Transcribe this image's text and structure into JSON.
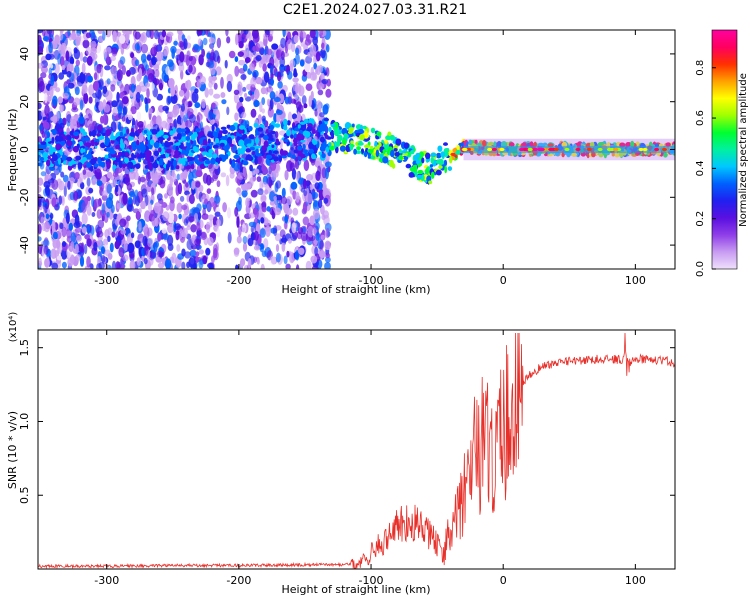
{
  "title": "C2E1.2024.027.03.31.R21",
  "chart_data": [
    {
      "type": "heatmap",
      "title": "C2E1.2024.027.03.31.R21",
      "xlabel": "Height of straight line (km)",
      "ylabel": "Frequency (Hz)",
      "xlim": [
        -352,
        130
      ],
      "ylim": [
        -50,
        50
      ],
      "xticks": [
        -300,
        -200,
        -100,
        0,
        100
      ],
      "yticks": [
        -40,
        -20,
        0,
        20,
        40
      ],
      "colorbar": {
        "label": "Normalized spectral amplitude",
        "range": [
          0,
          0.95
        ],
        "ticks": [
          0.0,
          0.2,
          0.4,
          0.6,
          0.8
        ],
        "colors": [
          "#f0e0fb",
          "#c89cf2",
          "#8f3ee8",
          "#5a10e0",
          "#2020f0",
          "#0060ff",
          "#00c8ff",
          "#00f0a0",
          "#00ff30",
          "#a0ff00",
          "#ffff00",
          "#ffa000",
          "#ff3000",
          "#ff0060",
          "#ff00a0"
        ]
      },
      "ridge": {
        "x": [
          -352,
          -300,
          -250,
          -200,
          -150,
          -130,
          -110,
          -90,
          -75,
          -65,
          -55,
          -50,
          -40,
          -30,
          -20,
          -10,
          0,
          50,
          100,
          130
        ],
        "center_hz": [
          0,
          0,
          0,
          2,
          4,
          5,
          4,
          1,
          -3,
          -6,
          -8,
          -4,
          -3,
          1,
          1,
          0,
          0,
          0,
          0,
          0
        ]
      }
    },
    {
      "type": "line",
      "xlabel": "Height of straight line (km)",
      "ylabel": "SNR (10 * v/v)",
      "y_multiplier": "(x10⁴)",
      "xlim": [
        -352,
        130
      ],
      "ylim": [
        0,
        1.62
      ],
      "xticks": [
        -300,
        -200,
        -100,
        0,
        100
      ],
      "yticks": [
        0.5,
        1.0,
        1.5
      ],
      "ytick_labels": [
        "0.5",
        "1.0",
        "1.5"
      ],
      "series": [
        {
          "color": "#e8302a",
          "x": [
            -352,
            -300,
            -250,
            -200,
            -150,
            -120,
            -110,
            -100,
            -90,
            -80,
            -70,
            -60,
            -50,
            -45,
            -40,
            -35,
            -30,
            -25,
            -20,
            -15,
            -10,
            -5,
            0,
            5,
            10,
            20,
            30,
            40,
            60,
            80,
            90,
            92,
            95,
            100,
            110,
            120,
            130
          ],
          "y": [
            0.02,
            0.02,
            0.025,
            0.025,
            0.03,
            0.03,
            0.04,
            0.12,
            0.2,
            0.3,
            0.34,
            0.28,
            0.18,
            0.12,
            0.25,
            0.35,
            0.5,
            0.7,
            0.85,
            0.9,
            0.85,
            0.9,
            1.0,
            1.1,
            1.2,
            1.32,
            1.38,
            1.4,
            1.42,
            1.43,
            1.42,
            1.5,
            1.4,
            1.43,
            1.42,
            1.42,
            1.4
          ]
        }
      ]
    }
  ]
}
